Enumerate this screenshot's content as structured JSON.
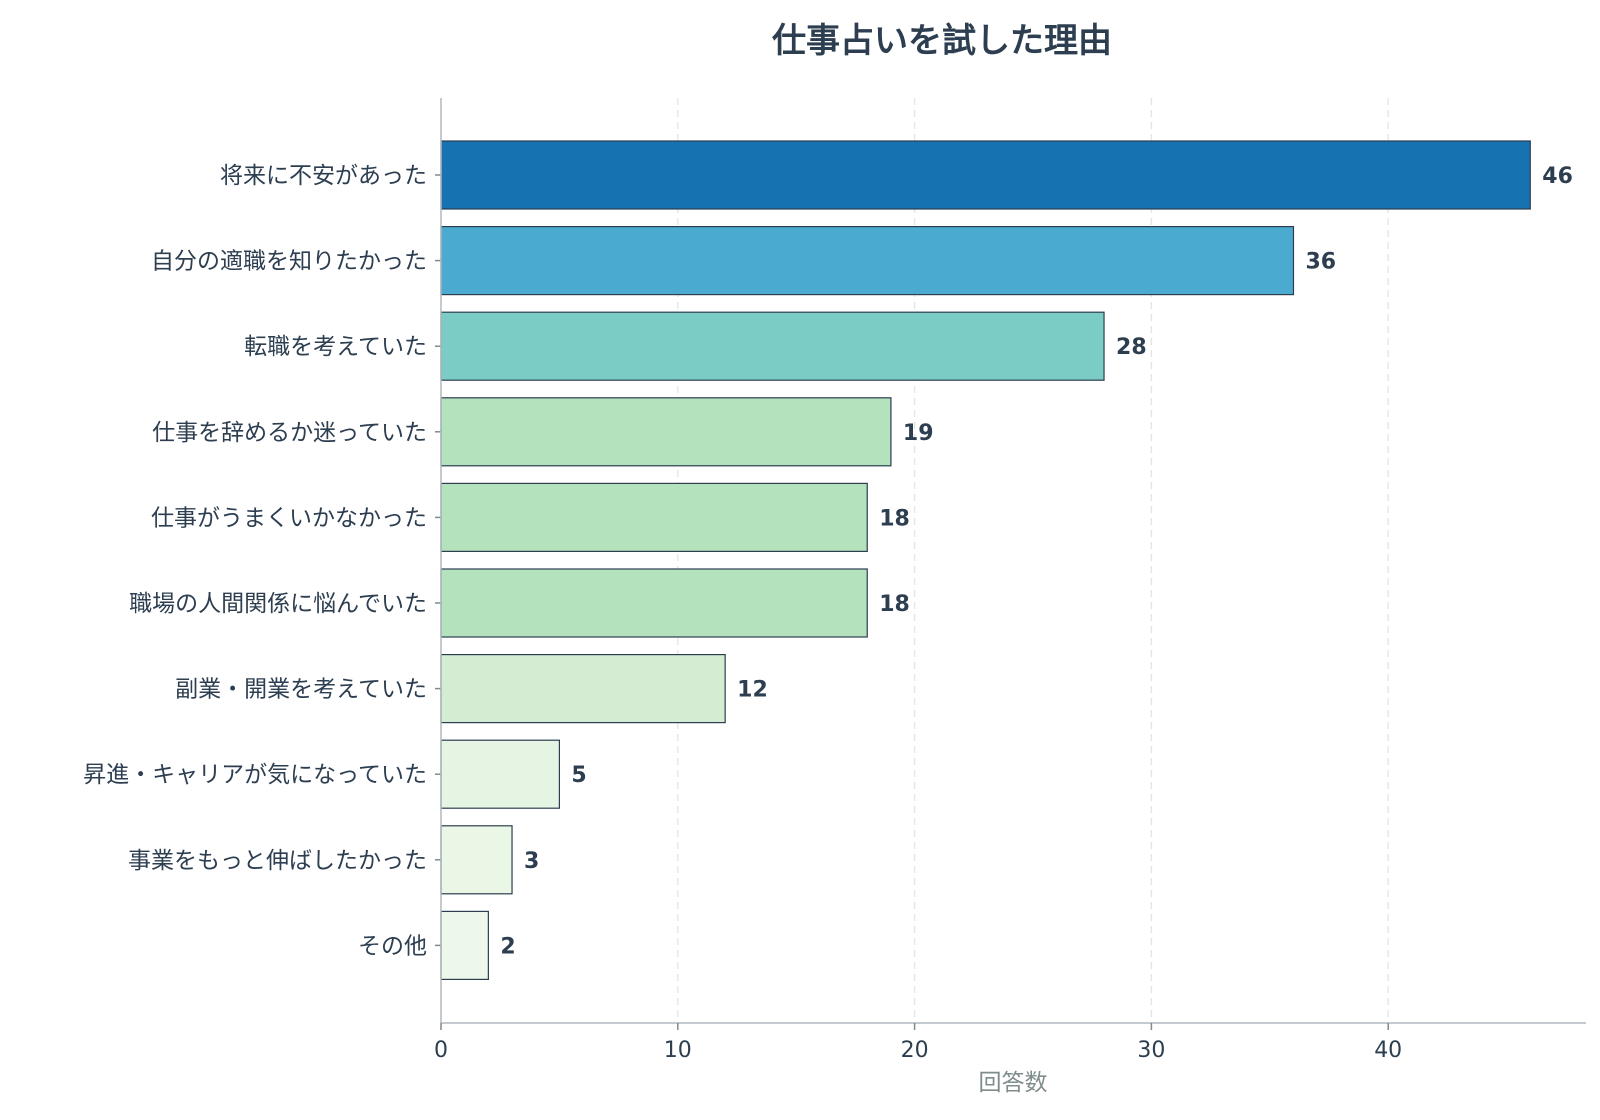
{
  "chart_data": {
    "type": "bar",
    "orientation": "horizontal",
    "title": "仕事占いを試した理由",
    "xlabel": "回答数",
    "ylabel": "",
    "xlim": [
      0,
      48
    ],
    "xticks": [
      0,
      10,
      20,
      30,
      40
    ],
    "grid": "vertical dashed",
    "legend": "none",
    "categories": [
      "将来に不安があった",
      "自分の適職を知りたかった",
      "転職を考えていた",
      "仕事を辞めるか迷っていた",
      "仕事がうまくいかなかった",
      "職場の人間関係に悩んでいた",
      "副業・開業を考えていた",
      "昇進・キャリアが気になっていた",
      "事業をもっと伸ばしたかった",
      "その他"
    ],
    "values": [
      46,
      36,
      28,
      19,
      18,
      18,
      12,
      5,
      3,
      2
    ],
    "colors": [
      "#1672b0",
      "#4aaad0",
      "#7accc4",
      "#b4e2bc",
      "#b4e2bc",
      "#b4e2bc",
      "#d4edd2",
      "#e6f5e3",
      "#eaf7e6",
      "#eef8ea"
    ]
  }
}
